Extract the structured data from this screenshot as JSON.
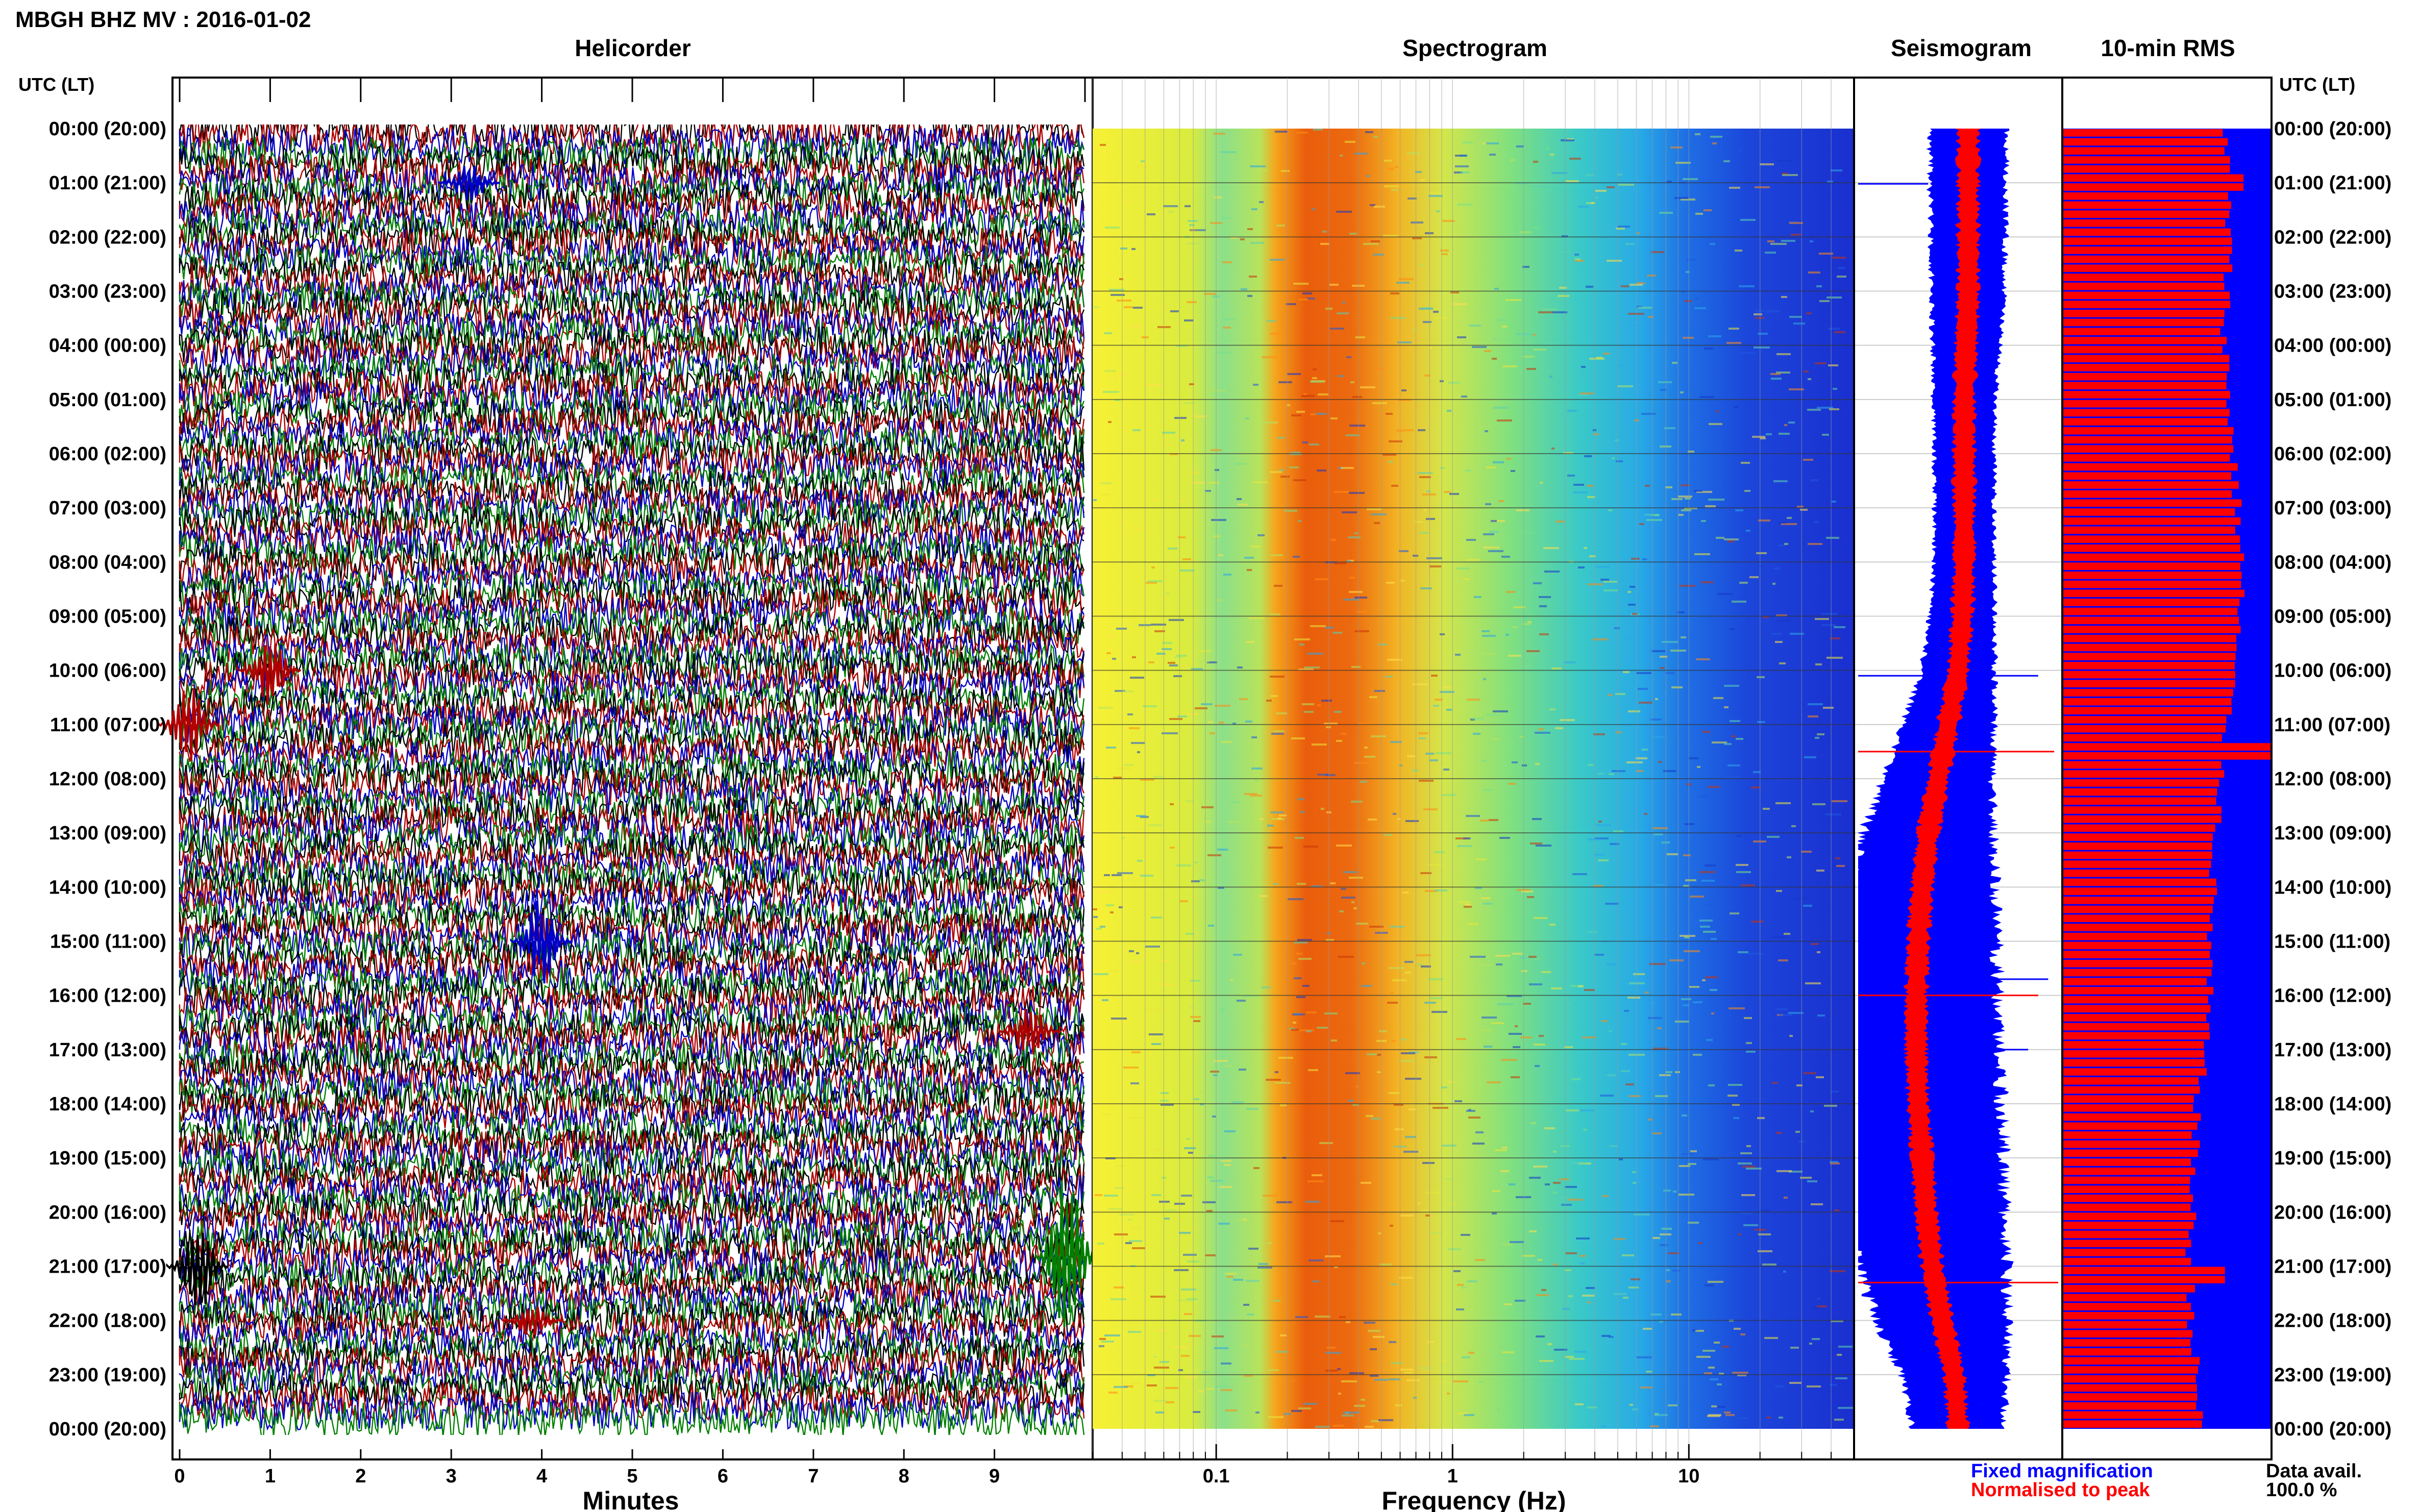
{
  "title": "MBGH BHZ MV : 2016-01-02",
  "panels": {
    "helicorder": "Helicorder",
    "spectrogram": "Spectrogram",
    "seismogram": "Seismogram",
    "rms": "10-min RMS"
  },
  "time_axis_label": "UTC (LT)",
  "time_labels": [
    "00:00 (20:00)",
    "01:00 (21:00)",
    "02:00 (22:00)",
    "03:00 (23:00)",
    "04:00 (00:00)",
    "05:00 (01:00)",
    "06:00 (02:00)",
    "07:00 (03:00)",
    "08:00 (04:00)",
    "09:00 (05:00)",
    "10:00 (06:00)",
    "11:00 (07:00)",
    "12:00 (08:00)",
    "13:00 (09:00)",
    "14:00 (10:00)",
    "15:00 (11:00)",
    "16:00 (12:00)",
    "17:00 (13:00)",
    "18:00 (14:00)",
    "19:00 (15:00)",
    "20:00 (16:00)",
    "21:00 (17:00)",
    "22:00 (18:00)",
    "23:00 (19:00)",
    "00:00 (20:00)"
  ],
  "xlabels": {
    "helicorder": "Minutes",
    "spectrogram": "Frequency (Hz)"
  },
  "minute_ticks": [
    "0",
    "1",
    "2",
    "3",
    "4",
    "5",
    "6",
    "7",
    "8",
    "9"
  ],
  "freq_ticks": [
    "0.1",
    "1",
    "10"
  ],
  "legend": {
    "fixed": "Fixed magnification",
    "normalised": "Normalised to peak"
  },
  "data_avail": {
    "label": "Data avail.",
    "value": "100.0 %"
  },
  "colors": {
    "trace_cycle": [
      "#000000",
      "#b00000",
      "#0000c8",
      "#008000"
    ],
    "fixed": "#0000ff",
    "normalised": "#ff0000",
    "rms_bg": "#0000ff",
    "rms_bar": "#ff0000"
  },
  "chart_data": [
    {
      "type": "line",
      "title": "Helicorder",
      "xlabel": "Minutes",
      "xlim": [
        0,
        10
      ],
      "rows": 144,
      "row_minutes": 10,
      "events": [
        {
          "time": "01:00",
          "minute": 3.2,
          "series": "blue",
          "amplitude": 0.6
        },
        {
          "time": "10:00",
          "minute": 1.0,
          "series": "red",
          "amplitude": 1.0
        },
        {
          "time": "11:00",
          "minute": 0.1,
          "series": "red",
          "amplitude": 1.3
        },
        {
          "time": "15:00",
          "minute": 4.0,
          "series": "blue",
          "amplitude": 1.3
        },
        {
          "time": "16:40",
          "minute": 9.4,
          "series": "red",
          "amplitude": 0.8
        },
        {
          "time": "20:50",
          "minute": 9.8,
          "series": "green",
          "amplitude": 2.6
        },
        {
          "time": "21:00",
          "minute": 0.2,
          "series": "black",
          "amplitude": 1.4
        },
        {
          "time": "22:00",
          "minute": 3.9,
          "series": "red",
          "amplitude": 0.5
        }
      ]
    },
    {
      "type": "heatmap",
      "title": "Spectrogram",
      "xlabel": "Frequency (Hz)",
      "xscale": "log",
      "xlim": [
        0.03,
        50
      ],
      "peak_band_hz": [
        0.2,
        0.5
      ]
    },
    {
      "type": "line",
      "title": "Seismogram",
      "series": [
        {
          "name": "Fixed magnification"
        },
        {
          "name": "Normalised to peak"
        }
      ],
      "hourly_width_fixed": [
        0.42,
        0.42,
        0.41,
        0.4,
        0.37,
        0.34,
        0.33,
        0.33,
        0.33,
        0.36,
        0.4,
        0.5,
        0.6,
        0.72,
        0.8,
        0.86,
        0.9,
        0.92,
        0.92,
        0.9,
        0.86,
        0.82,
        0.72,
        0.58,
        0.5
      ],
      "hourly_center": [
        0.55,
        0.55,
        0.55,
        0.55,
        0.54,
        0.53,
        0.53,
        0.53,
        0.53,
        0.52,
        0.5,
        0.45,
        0.4,
        0.35,
        0.32,
        0.3,
        0.29,
        0.29,
        0.3,
        0.32,
        0.34,
        0.37,
        0.42,
        0.48,
        0.5
      ]
    },
    {
      "type": "bar",
      "title": "10-min RMS",
      "orientation": "horizontal",
      "hourly_rms": [
        0.79,
        0.79,
        0.8,
        0.79,
        0.78,
        0.8,
        0.82,
        0.84,
        0.86,
        0.85,
        0.82,
        0.79,
        0.77,
        0.74,
        0.72,
        0.71,
        0.7,
        0.68,
        0.65,
        0.63,
        0.62,
        0.61,
        0.62,
        0.64,
        0.66
      ],
      "spikes": [
        {
          "time": "01:00",
          "value": 0.87
        },
        {
          "time": "11:30",
          "value": 1.0
        },
        {
          "time": "21:10",
          "value": 0.78
        }
      ]
    }
  ]
}
